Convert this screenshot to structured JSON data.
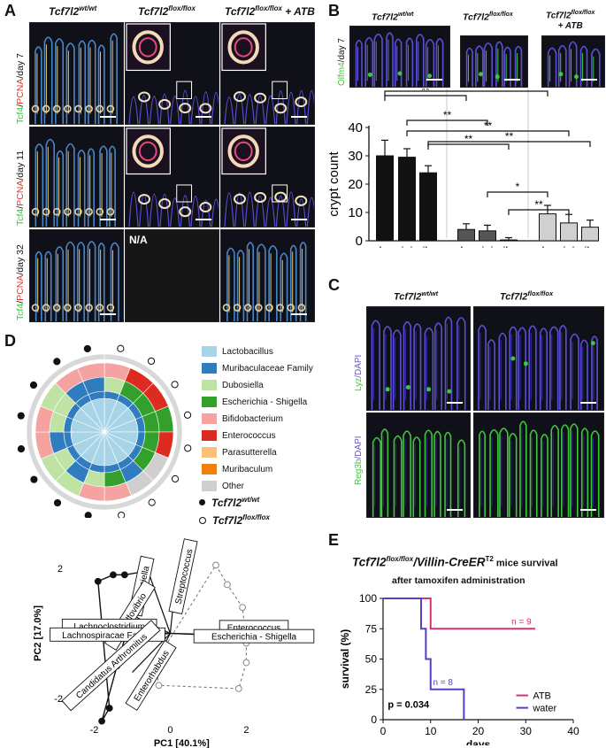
{
  "panelA": {
    "letter": "A",
    "col_headers": [
      {
        "gene": "Tcf7l2",
        "sup": "wt/wt",
        "suffix": ""
      },
      {
        "gene": "Tcf7l2",
        "sup": "flox/flox",
        "suffix": ""
      },
      {
        "gene": "Tcf7l2",
        "sup": "flox/flox",
        "suffix": " + ATB"
      }
    ],
    "row_labels": [
      {
        "m1": "Tcf4",
        "m2": "PCNA",
        "day": "/day 7"
      },
      {
        "m1": "Tcf4",
        "m2": "PCNA",
        "day": "/day 11"
      },
      {
        "m1": "Tcf4",
        "m2": "PCNA",
        "day": "/day 32"
      }
    ],
    "na_label": "N/A"
  },
  "panelB": {
    "letter": "B",
    "col_headers": [
      {
        "gene": "Tcf7l2",
        "sup": "wt/wt",
        "suffix": ""
      },
      {
        "gene": "Tcf7l2",
        "sup": "flox/flox",
        "suffix": ""
      },
      {
        "gene": "Tcf7l2",
        "sup": "flox/flox",
        "suffix": "+ ATB"
      }
    ],
    "row_label": {
      "marker": "Olfm4",
      "day": "/day 7"
    },
    "significance": [
      "**",
      "**",
      "**",
      "**",
      "**",
      "**",
      "*",
      "**"
    ]
  },
  "panelC": {
    "letter": "C",
    "col_headers": [
      {
        "gene": "Tcf7l2",
        "sup": "wt/wt"
      },
      {
        "gene": "Tcf7l2",
        "sup": "flox/flox"
      }
    ],
    "row_labels": [
      {
        "marker": "Lyz",
        "stain": "/DAPI"
      },
      {
        "marker": "Reg3b",
        "stain": "/DAPI"
      }
    ]
  },
  "panelD": {
    "letter": "D",
    "legend": [
      {
        "name": "Lactobacillus",
        "color": "#a8d4e8"
      },
      {
        "name": "Muribaculaceae Family",
        "color": "#2f7cbf"
      },
      {
        "name": "Dubosiella",
        "color": "#bfe3a4"
      },
      {
        "name": "Escherichia - Shigella",
        "color": "#33a02c"
      },
      {
        "name": "Bifidobacterium",
        "color": "#f4a3a0"
      },
      {
        "name": "Enterococcus",
        "color": "#dc2b20"
      },
      {
        "name": "Parasutterella",
        "color": "#f9c07a"
      },
      {
        "name": "Muribaculum",
        "color": "#f07f0e"
      },
      {
        "name": "Other",
        "color": "#cfcfcf"
      }
    ],
    "group_legend": [
      {
        "gene": "Tcf7l2",
        "sup": "wt/wt",
        "marker": "filled"
      },
      {
        "gene": "Tcf7l2",
        "sup": "flox/flox",
        "marker": "open"
      }
    ],
    "biplot_vectors": [
      "Dubosiella",
      "Streptococcus",
      "Desulfovibrio",
      "Lachnoclostridium",
      "Lachnospiracae Family",
      "Enterococcus",
      "Escherichia - Shigella",
      "Candidatus Arthromitus",
      "Enterorhabdus"
    ]
  },
  "panelE": {
    "letter": "E",
    "title_gene": "Tcf7l2",
    "title_sup1": "flox/flox",
    "title_cre": "/Villin-CreER",
    "title_sup2": "T2",
    "title_tail": " mice survival",
    "subtitle": "after tamoxifen administration",
    "n_atb": "n = 9",
    "n_water": "n = 8",
    "pvalue": "p = 0.034"
  },
  "chart_data": [
    {
      "type": "bar",
      "title": "",
      "xlabel": "",
      "ylabel": "crypt count",
      "ylim": [
        0,
        40
      ],
      "yticks": [
        0,
        10,
        20,
        30,
        40
      ],
      "categories": [
        "duo",
        "jej",
        "ile",
        "duo",
        "jej",
        "ile",
        "duo",
        "jej",
        "ile"
      ],
      "groups": [
        "Tcf7l2 wt/wt",
        "Tcf7l2 wt/wt",
        "Tcf7l2 wt/wt",
        "Tcf7l2 flox/flox",
        "Tcf7l2 flox/flox",
        "Tcf7l2 flox/flox",
        "Tcf7l2 flox/flox + ATB",
        "Tcf7l2 flox/flox + ATB",
        "Tcf7l2 flox/flox + ATB"
      ],
      "values": [
        30,
        29.5,
        24,
        4,
        3.5,
        0.3,
        9.5,
        6.3,
        4.8
      ],
      "errors": [
        5.5,
        3,
        2.5,
        2,
        2,
        0.8,
        3,
        3,
        2.5
      ],
      "colors": [
        "#111111",
        "#111111",
        "#111111",
        "#555555",
        "#555555",
        "#555555",
        "#d0d0d0",
        "#d0d0d0",
        "#d0d0d0"
      ],
      "grid": false,
      "legend": "none"
    },
    {
      "type": "scatter",
      "title": "",
      "xlabel": "PC1 [40.1%]",
      "ylabel": "PC2 [17.0%]",
      "xticks": [
        -2,
        0,
        2
      ],
      "yticks": [
        -2,
        0,
        2
      ],
      "xlim": [
        -2.5,
        3.2
      ],
      "ylim": [
        -2.9,
        2.6
      ],
      "series": [
        {
          "name": "Tcf7l2 wt/wt",
          "marker": "filled",
          "hull": "solid",
          "points": [
            [
              -1.8,
              -2.7
            ],
            [
              -1.6,
              -2.3
            ],
            [
              -1.9,
              1.6
            ],
            [
              -1.5,
              1.8
            ],
            [
              -1.2,
              1.8
            ],
            [
              -0.7,
              1.9
            ],
            [
              -1.4,
              -1.0
            ]
          ]
        },
        {
          "name": "Tcf7l2 flox/flox",
          "marker": "open",
          "hull": "dashed",
          "points": [
            [
              1.2,
              2.1
            ],
            [
              1.5,
              1.5
            ],
            [
              1.9,
              0.8
            ],
            [
              2.0,
              -0.3
            ],
            [
              2.0,
              -0.9
            ],
            [
              1.8,
              -1.7
            ],
            [
              -0.3,
              -1.6
            ],
            [
              -0.4,
              -0.9
            ]
          ]
        }
      ],
      "grid": false,
      "legend": "none"
    },
    {
      "type": "line",
      "title": "",
      "xlabel": "days",
      "ylabel": "survival (%)",
      "xlim": [
        0,
        40
      ],
      "ylim": [
        0,
        100
      ],
      "xticks": [
        0,
        10,
        20,
        30,
        40
      ],
      "yticks": [
        0,
        25,
        50,
        75,
        100
      ],
      "step": true,
      "series": [
        {
          "name": "ATB",
          "color": "#d6336c",
          "x": [
            0,
            10,
            10,
            32
          ],
          "y": [
            100,
            100,
            75,
            75
          ]
        },
        {
          "name": "water",
          "color": "#5b3cc4",
          "x": [
            0,
            8,
            8,
            9,
            9,
            10,
            10,
            17,
            17
          ],
          "y": [
            100,
            100,
            75,
            75,
            50,
            50,
            25,
            25,
            0
          ]
        }
      ],
      "grid": false,
      "legend": "bottom-right"
    }
  ]
}
